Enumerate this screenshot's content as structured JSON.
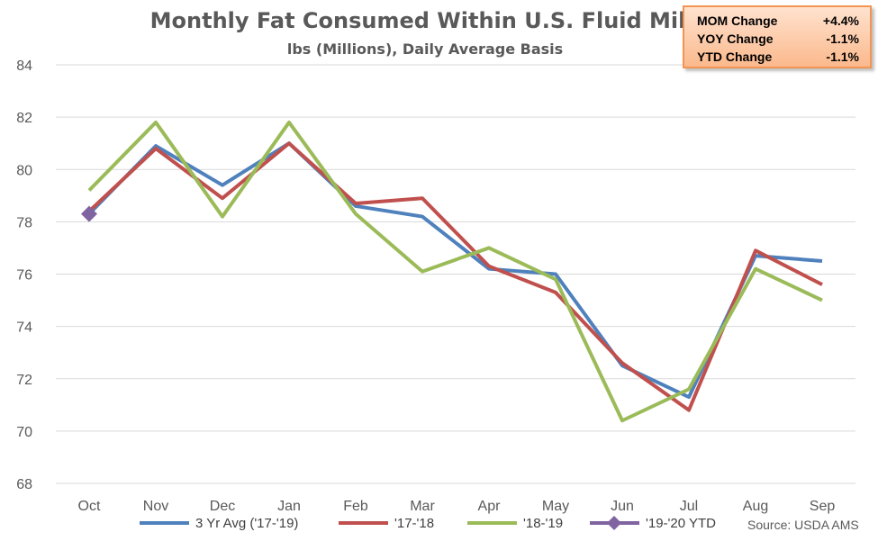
{
  "chart_data": {
    "type": "line",
    "title": "Monthly Fat Consumed Within U.S. Fluid Milk",
    "subtitle": "lbs (Millions), Daily Average Basis",
    "categories": [
      "Oct",
      "Nov",
      "Dec",
      "Jan",
      "Feb",
      "Mar",
      "Apr",
      "May",
      "Jun",
      "Jul",
      "Aug",
      "Sep"
    ],
    "ylim": [
      68,
      84
    ],
    "yticks": [
      "68",
      "70",
      "72",
      "74",
      "76",
      "78",
      "80",
      "82",
      "84"
    ],
    "grid": true,
    "legend_position": "bottom",
    "series": [
      {
        "name": "3 Yr Avg ('17-'19)",
        "color": "#4f81bd",
        "marker": "none",
        "values": [
          78.3,
          80.9,
          79.4,
          81.0,
          78.6,
          78.2,
          76.2,
          76.0,
          72.5,
          71.3,
          76.7,
          76.5
        ]
      },
      {
        "name": "'17-'18",
        "color": "#c0504d",
        "marker": "none",
        "values": [
          78.4,
          80.8,
          78.9,
          81.0,
          78.7,
          78.9,
          76.3,
          75.3,
          72.6,
          70.8,
          76.9,
          75.6
        ]
      },
      {
        "name": "'18-'19",
        "color": "#9bbb59",
        "marker": "none",
        "values": [
          79.2,
          81.8,
          78.2,
          81.8,
          78.3,
          76.1,
          77.0,
          75.8,
          70.4,
          71.6,
          76.2,
          75.0
        ]
      },
      {
        "name": "'19-'20 YTD",
        "color": "#8064a2",
        "marker": "diamond",
        "values": [
          78.3,
          null,
          null,
          null,
          null,
          null,
          null,
          null,
          null,
          null,
          null,
          null
        ]
      }
    ],
    "stats_box": {
      "rows": [
        {
          "label": "MOM Change",
          "value": "+4.4%"
        },
        {
          "label": "YOY Change",
          "value": "-1.1%"
        },
        {
          "label": "YTD Change",
          "value": "-1.1%"
        }
      ]
    },
    "source": "Source: USDA AMS"
  }
}
